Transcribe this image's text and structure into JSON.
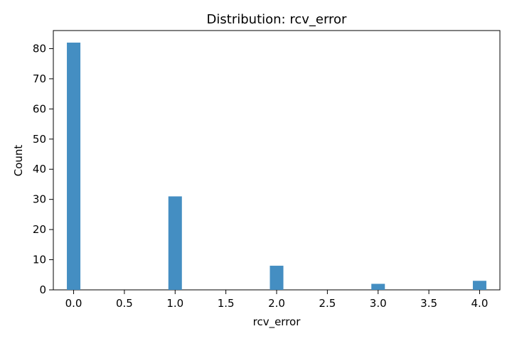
{
  "chart_data": {
    "type": "bar",
    "title": "Distribution: rcv_error",
    "xlabel": "rcv_error",
    "ylabel": "Count",
    "x": [
      0.0,
      1.0,
      2.0,
      3.0,
      4.0
    ],
    "values": [
      82,
      31,
      8,
      2,
      3
    ],
    "bin_width": 0.1333,
    "xlim": [
      -0.2,
      4.2
    ],
    "ylim": [
      0,
      86
    ],
    "x_ticks": [
      0.0,
      0.5,
      1.0,
      1.5,
      2.0,
      2.5,
      3.0,
      3.5,
      4.0
    ],
    "x_tick_labels": [
      "0.0",
      "0.5",
      "1.0",
      "1.5",
      "2.0",
      "2.5",
      "3.0",
      "3.5",
      "4.0"
    ],
    "y_ticks": [
      0,
      10,
      20,
      30,
      40,
      50,
      60,
      70,
      80
    ],
    "y_tick_labels": [
      "0",
      "10",
      "20",
      "30",
      "40",
      "50",
      "60",
      "70",
      "80"
    ],
    "grid": false,
    "bar_color": "#448ec2"
  }
}
